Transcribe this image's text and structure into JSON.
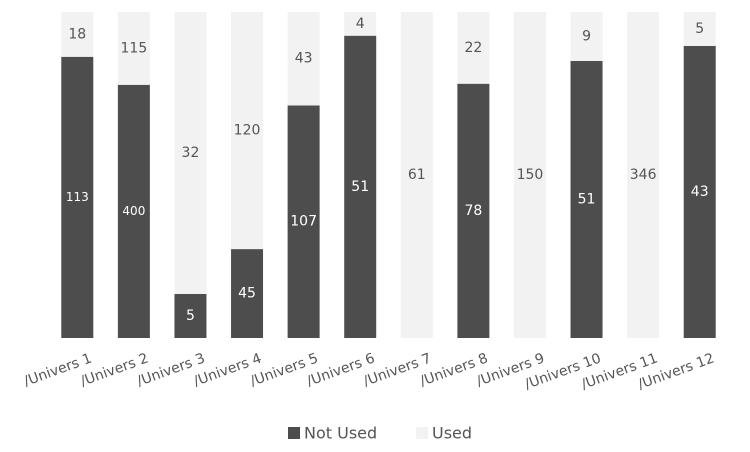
{
  "chart_data": {
    "type": "stacked_percent_bar",
    "categories": [
      "/Univers 1",
      "/Univers 2",
      "/Univers 3",
      "/Univers 4",
      "/Univers 5",
      "/Univers 6",
      "/Univers 7",
      "/Univers 8",
      "/Univers 9",
      "/Univers 10",
      "/Univers 11",
      "/Univers 12"
    ],
    "series": [
      {
        "name": "Not Used",
        "color": "#4d4d4d",
        "values": [
          113,
          400,
          5,
          45,
          107,
          51,
          0,
          78,
          0,
          51,
          0,
          43
        ]
      },
      {
        "name": "Used",
        "color": "#f2f2f2",
        "values": [
          18,
          115,
          32,
          120,
          43,
          4,
          61,
          22,
          150,
          9,
          346,
          5
        ]
      }
    ],
    "legend": "bottom"
  }
}
